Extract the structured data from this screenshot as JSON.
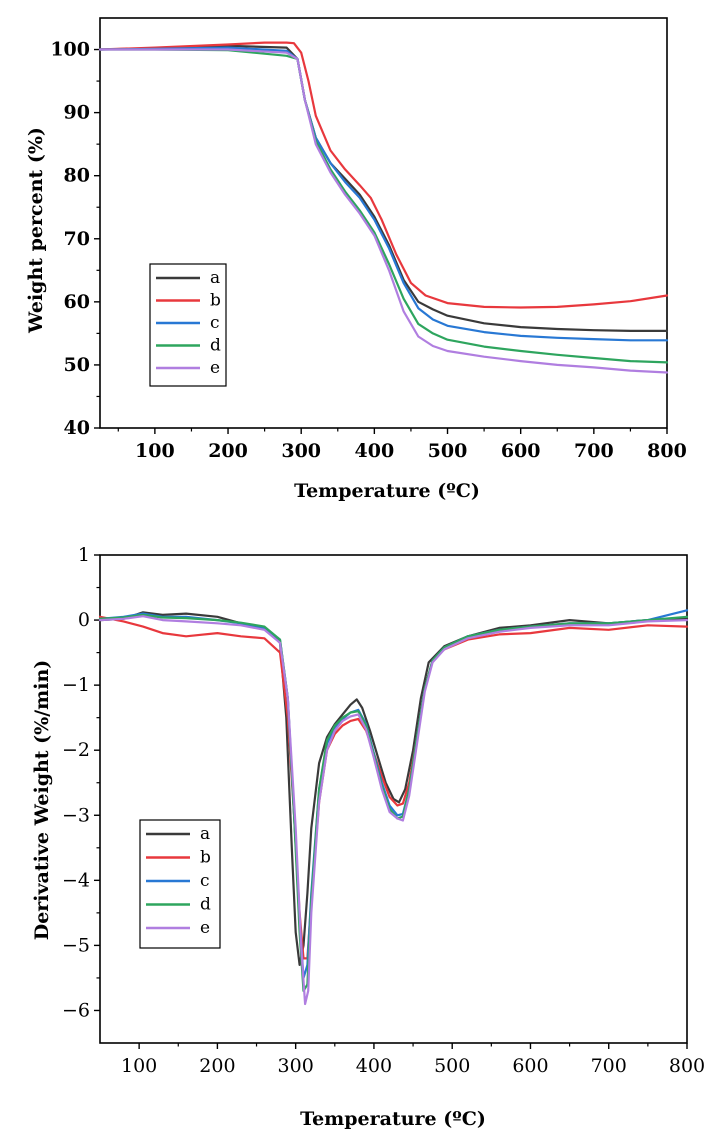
{
  "chart_data": [
    {
      "type": "line",
      "title": "",
      "xlabel": "Temperature (ºC)",
      "ylabel": "Weight percent (%)",
      "xlim": [
        25,
        800
      ],
      "ylim": [
        40,
        105
      ],
      "xticks": [
        100,
        200,
        300,
        400,
        500,
        600,
        700,
        800
      ],
      "yticks": [
        40,
        50,
        60,
        70,
        80,
        90,
        100
      ],
      "xtick_labels": [
        "100",
        "200",
        "300",
        "400",
        "500",
        "600",
        "700",
        "800"
      ],
      "ytick_labels": [
        "40",
        "50",
        "60",
        "70",
        "80",
        "90",
        "100"
      ],
      "legend_position": "lower-left",
      "series": [
        {
          "name": "a",
          "color": "#3a3a3a",
          "x": [
            25,
            100,
            200,
            280,
            295,
            305,
            320,
            340,
            360,
            380,
            400,
            420,
            440,
            460,
            480,
            500,
            550,
            600,
            650,
            700,
            750,
            800
          ],
          "y": [
            100,
            100.2,
            100.6,
            100.3,
            98.5,
            92,
            86,
            82,
            79.5,
            77,
            73.5,
            69,
            63.5,
            60,
            58.8,
            57.8,
            56.6,
            56,
            55.7,
            55.5,
            55.4,
            55.4
          ]
        },
        {
          "name": "b",
          "color": "#e8383d",
          "x": [
            25,
            100,
            200,
            250,
            280,
            290,
            300,
            310,
            320,
            340,
            360,
            380,
            395,
            410,
            430,
            450,
            470,
            500,
            550,
            600,
            650,
            700,
            750,
            800
          ],
          "y": [
            100,
            100.3,
            100.8,
            101.1,
            101.1,
            101,
            99.5,
            95,
            89.5,
            84,
            81,
            78.5,
            76.5,
            73,
            67.5,
            63,
            61,
            59.8,
            59.2,
            59.1,
            59.2,
            59.6,
            60.1,
            61
          ]
        },
        {
          "name": "c",
          "color": "#2878d4",
          "x": [
            25,
            100,
            200,
            280,
            295,
            305,
            320,
            340,
            360,
            380,
            400,
            420,
            440,
            460,
            480,
            500,
            550,
            600,
            650,
            700,
            750,
            800
          ],
          "y": [
            100,
            100.1,
            100.3,
            99.8,
            98.5,
            92,
            86,
            82,
            79,
            76.5,
            73,
            68.5,
            63,
            59,
            57.2,
            56.2,
            55.2,
            54.6,
            54.3,
            54.1,
            53.9,
            53.9
          ]
        },
        {
          "name": "d",
          "color": "#2ea55e",
          "x": [
            25,
            100,
            200,
            280,
            295,
            305,
            320,
            340,
            360,
            380,
            400,
            420,
            440,
            460,
            480,
            500,
            550,
            600,
            650,
            700,
            750,
            800
          ],
          "y": [
            100,
            100,
            99.9,
            99,
            98.5,
            92,
            85.5,
            81,
            77.5,
            74.5,
            71,
            66,
            60.5,
            56.5,
            55,
            54,
            52.9,
            52.2,
            51.6,
            51.1,
            50.6,
            50.4
          ]
        },
        {
          "name": "e",
          "color": "#b07ee0",
          "x": [
            25,
            100,
            200,
            280,
            295,
            305,
            320,
            340,
            360,
            380,
            400,
            420,
            440,
            460,
            480,
            500,
            550,
            600,
            650,
            700,
            750,
            800
          ],
          "y": [
            100,
            100,
            100,
            99.5,
            98.5,
            92,
            85,
            80.5,
            77,
            74,
            70.5,
            65,
            58.5,
            54.5,
            53,
            52.2,
            51.3,
            50.6,
            50,
            49.6,
            49.1,
            48.8
          ]
        }
      ]
    },
    {
      "type": "line",
      "title": "",
      "xlabel": "Temperature (ºC)",
      "ylabel": "Derivative Weight (%/min)",
      "xlim": [
        50,
        800
      ],
      "ylim": [
        -6.5,
        1
      ],
      "xticks": [
        100,
        200,
        300,
        400,
        500,
        600,
        700,
        800
      ],
      "yticks": [
        -6,
        -5,
        -4,
        -3,
        -2,
        -1,
        0,
        1
      ],
      "xtick_labels": [
        "100",
        "200",
        "300",
        "400",
        "500",
        "600",
        "700",
        "800"
      ],
      "ytick_labels": [
        "−6",
        "−5",
        "−4",
        "−3",
        "−2",
        "−1",
        "0",
        "1"
      ],
      "legend_position": "lower-left",
      "series": [
        {
          "name": "a",
          "color": "#3a3a3a",
          "x": [
            50,
            80,
            105,
            130,
            160,
            200,
            230,
            260,
            280,
            288,
            295,
            300,
            305,
            310,
            315,
            320,
            330,
            340,
            350,
            360,
            370,
            378,
            385,
            395,
            405,
            415,
            425,
            432,
            440,
            450,
            460,
            470,
            490,
            520,
            560,
            600,
            650,
            700,
            750,
            800
          ],
          "y": [
            0,
            0.02,
            0.12,
            0.08,
            0.1,
            0.05,
            -0.05,
            -0.12,
            -0.35,
            -1.5,
            -3.5,
            -4.8,
            -5.3,
            -5,
            -4.2,
            -3.2,
            -2.2,
            -1.8,
            -1.6,
            -1.45,
            -1.3,
            -1.22,
            -1.35,
            -1.7,
            -2.1,
            -2.5,
            -2.75,
            -2.8,
            -2.6,
            -2,
            -1.2,
            -0.65,
            -0.4,
            -0.25,
            -0.12,
            -0.08,
            0,
            -0.05,
            0,
            0.02
          ]
        },
        {
          "name": "b",
          "color": "#e8383d",
          "x": [
            50,
            80,
            105,
            130,
            160,
            200,
            230,
            260,
            280,
            290,
            298,
            305,
            310,
            315,
            320,
            330,
            340,
            350,
            360,
            370,
            380,
            390,
            400,
            410,
            420,
            430,
            437,
            445,
            455,
            465,
            475,
            490,
            520,
            560,
            600,
            650,
            700,
            750,
            800
          ],
          "y": [
            0.05,
            -0.02,
            -0.1,
            -0.2,
            -0.25,
            -0.2,
            -0.25,
            -0.28,
            -0.5,
            -1.5,
            -3,
            -4.5,
            -5.2,
            -5.2,
            -4.3,
            -2.8,
            -2,
            -1.75,
            -1.62,
            -1.55,
            -1.52,
            -1.7,
            -2.05,
            -2.4,
            -2.72,
            -2.85,
            -2.82,
            -2.5,
            -1.8,
            -1.05,
            -0.62,
            -0.45,
            -0.3,
            -0.22,
            -0.2,
            -0.12,
            -0.15,
            -0.08,
            -0.1
          ]
        },
        {
          "name": "c",
          "color": "#2878d4",
          "x": [
            50,
            80,
            105,
            130,
            160,
            200,
            230,
            260,
            280,
            290,
            298,
            305,
            310,
            315,
            320,
            330,
            340,
            350,
            360,
            370,
            380,
            390,
            400,
            410,
            420,
            430,
            437,
            445,
            455,
            465,
            475,
            490,
            520,
            560,
            600,
            650,
            700,
            750,
            800
          ],
          "y": [
            0.02,
            0.05,
            0.1,
            0.05,
            0.05,
            0,
            -0.05,
            -0.12,
            -0.3,
            -1.2,
            -3,
            -4.6,
            -5.5,
            -5.3,
            -4.2,
            -2.6,
            -1.9,
            -1.65,
            -1.52,
            -1.42,
            -1.38,
            -1.6,
            -2.05,
            -2.5,
            -2.85,
            -3,
            -2.98,
            -2.6,
            -1.8,
            -1.05,
            -0.62,
            -0.42,
            -0.25,
            -0.15,
            -0.1,
            -0.05,
            -0.05,
            0,
            0.15
          ]
        },
        {
          "name": "d",
          "color": "#2ea55e",
          "x": [
            50,
            80,
            105,
            130,
            160,
            200,
            230,
            260,
            280,
            290,
            298,
            305,
            310,
            315,
            320,
            330,
            340,
            350,
            360,
            370,
            380,
            390,
            400,
            410,
            420,
            430,
            437,
            445,
            455,
            465,
            475,
            490,
            520,
            560,
            600,
            650,
            700,
            750,
            800
          ],
          "y": [
            0.02,
            0.04,
            0.08,
            0.04,
            0.03,
            0,
            -0.04,
            -0.1,
            -0.3,
            -1.2,
            -3,
            -4.8,
            -5.7,
            -5.6,
            -4.3,
            -2.6,
            -1.85,
            -1.62,
            -1.5,
            -1.42,
            -1.4,
            -1.62,
            -2.08,
            -2.55,
            -2.9,
            -3.05,
            -3.02,
            -2.6,
            -1.8,
            -1.05,
            -0.62,
            -0.42,
            -0.25,
            -0.15,
            -0.1,
            -0.05,
            -0.05,
            0,
            0.05
          ]
        },
        {
          "name": "e",
          "color": "#b07ee0",
          "x": [
            50,
            80,
            105,
            130,
            160,
            200,
            230,
            260,
            280,
            290,
            300,
            307,
            312,
            316,
            320,
            330,
            340,
            350,
            360,
            370,
            380,
            390,
            400,
            410,
            420,
            430,
            437,
            445,
            455,
            465,
            475,
            490,
            520,
            560,
            600,
            650,
            700,
            750,
            800
          ],
          "y": [
            0,
            0.02,
            0.06,
            0,
            -0.02,
            -0.05,
            -0.08,
            -0.15,
            -0.35,
            -1.2,
            -3.2,
            -5,
            -5.9,
            -5.7,
            -4.5,
            -2.8,
            -2,
            -1.7,
            -1.55,
            -1.48,
            -1.45,
            -1.68,
            -2.12,
            -2.6,
            -2.95,
            -3.05,
            -3.08,
            -2.7,
            -1.9,
            -1.1,
            -0.65,
            -0.45,
            -0.28,
            -0.18,
            -0.12,
            -0.08,
            -0.08,
            -0.02,
            0
          ]
        }
      ]
    }
  ]
}
